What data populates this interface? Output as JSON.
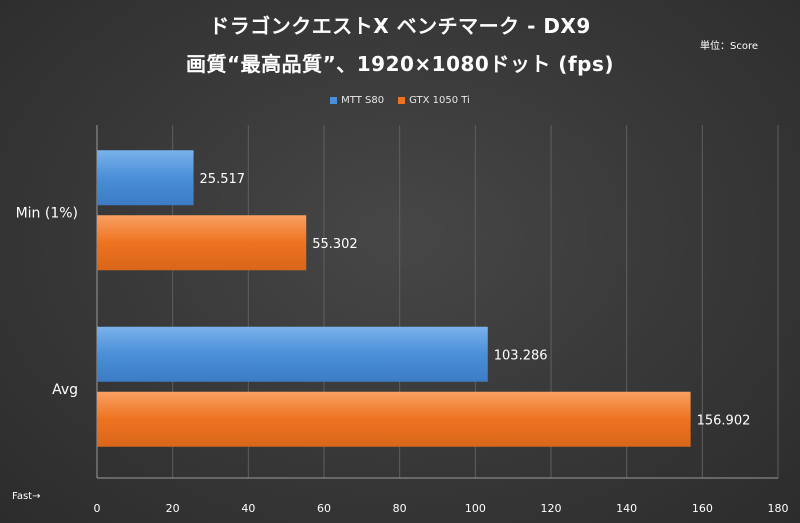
{
  "chart_data": {
    "type": "bar",
    "orientation": "horizontal",
    "title": "ドラゴンクエストX ベンチマーク - DX9",
    "subtitle": "画質“最高品質”、1920×1080ドット (fps)",
    "unit_note": "単位：Score",
    "axis_note": "Fast→",
    "categories": [
      "Min (1%)",
      "Avg"
    ],
    "series": [
      {
        "name": "MTT S80",
        "color": "#4a8fd8",
        "values": [
          25.517,
          103.286
        ],
        "labels": [
          "25.517",
          "103.286"
        ]
      },
      {
        "name": "GTX 1050 Ti",
        "color": "#ee7320",
        "values": [
          55.302,
          156.902
        ],
        "labels": [
          "55.302",
          "156.902"
        ]
      }
    ],
    "xlim": [
      0,
      180
    ],
    "xticks": [
      0,
      20,
      40,
      60,
      80,
      100,
      120,
      140,
      160,
      180
    ],
    "grid": true,
    "legend_position": "top"
  }
}
